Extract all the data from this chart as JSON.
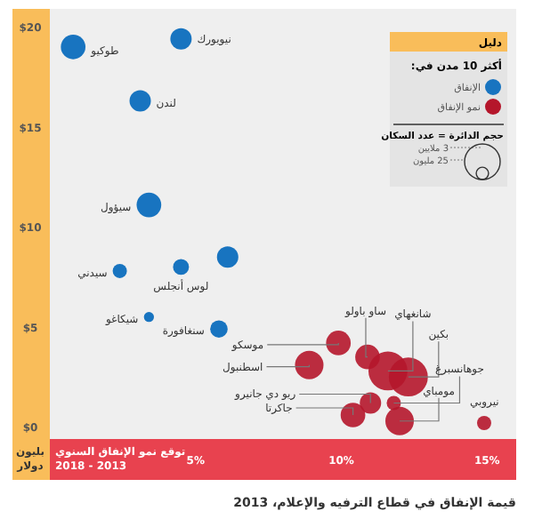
{
  "chart_data": {
    "type": "bubble",
    "title": "قيمة الإنفاق في قطاع الترفيه والإعلام، 2013",
    "xlabel": "توقع نمو الإنفاق السنوي 2013 - 2018",
    "ylabel": "بليون دولار",
    "legend_title": "دليل",
    "legend": "top right",
    "xlim": [
      0,
      16
    ],
    "ylim": [
      -0.6,
      20.9
    ],
    "xticks": [
      {
        "value": 5,
        "label": "5%"
      },
      {
        "value": 10,
        "label": "10%"
      },
      {
        "value": 15,
        "label": "15%"
      }
    ],
    "yticks": [
      {
        "value": 0,
        "label": "$0"
      },
      {
        "value": 5,
        "label": "$5"
      },
      {
        "value": 10,
        "label": "$10"
      },
      {
        "value": 15,
        "label": "$15"
      },
      {
        "value": 20,
        "label": "$20"
      }
    ],
    "size_legend": [
      {
        "value": 3,
        "label": "3 ملايين"
      },
      {
        "value": 25,
        "label": "25 مليون"
      }
    ],
    "series": [
      {
        "name": "الإنفاق",
        "color": "#1874c0",
        "x": [
          0.8,
          4.5,
          3.1,
          3.4,
          2.4,
          4.5,
          6.1,
          3.4,
          5.8
        ],
        "values": [
          19.0,
          19.4,
          16.3,
          11.1,
          7.8,
          8.0,
          8.5,
          5.5,
          4.9
        ],
        "sizes": [
          12,
          9,
          9,
          12,
          4,
          5,
          9,
          2,
          6
        ]
      },
      {
        "name": "نمو الإنفاق",
        "color": "#b5162b",
        "x": [
          9.9,
          8.9,
          10.9,
          11.6,
          12.3,
          11.0,
          10.4,
          11.8,
          12.0,
          14.9
        ],
        "values": [
          4.2,
          3.1,
          3.5,
          2.8,
          2.5,
          1.2,
          0.6,
          1.2,
          0.3,
          0.2
        ],
        "sizes": [
          12,
          16,
          12,
          30,
          30,
          9,
          12,
          4,
          16,
          4
        ]
      }
    ],
    "annotations": [
      "أكثر 10 مدن في:",
      "حجم الدائرة = عدد السكان",
      {
        "text": "طوكيو",
        "x": 0.8,
        "y": 19.0
      },
      {
        "text": "نيويورك",
        "x": 4.5,
        "y": 19.4
      },
      {
        "text": "لندن",
        "x": 3.1,
        "y": 16.3
      },
      {
        "text": "سيؤول",
        "x": 3.4,
        "y": 11.1
      },
      {
        "text": "سيدني",
        "x": 2.4,
        "y": 7.8
      },
      {
        "text": "لوس أنجلس",
        "x": 4.5,
        "y": 8.0
      },
      {
        "text": "شيكاغو",
        "x": 3.4,
        "y": 5.5
      },
      {
        "text": "سنغافورة",
        "x": 5.8,
        "y": 4.9
      },
      {
        "text": "موسكو",
        "x": 9.9,
        "y": 4.2
      },
      {
        "text": "اسطنبول",
        "x": 8.9,
        "y": 3.1
      },
      {
        "text": "ساو باولو",
        "x": 10.9,
        "y": 3.5
      },
      {
        "text": "شانغهاي",
        "x": 11.6,
        "y": 2.8
      },
      {
        "text": "بكين",
        "x": 12.3,
        "y": 2.5
      },
      {
        "text": "ريو دي جانيرو",
        "x": 11.0,
        "y": 1.2
      },
      {
        "text": "جاكرتا",
        "x": 10.4,
        "y": 0.6
      },
      {
        "text": "جوهانسبرغ",
        "x": 11.8,
        "y": 1.2
      },
      {
        "text": "مومباي",
        "x": 12.0,
        "y": 0.3
      },
      {
        "text": "نيروبي",
        "x": 14.9,
        "y": 0.2
      }
    ]
  }
}
